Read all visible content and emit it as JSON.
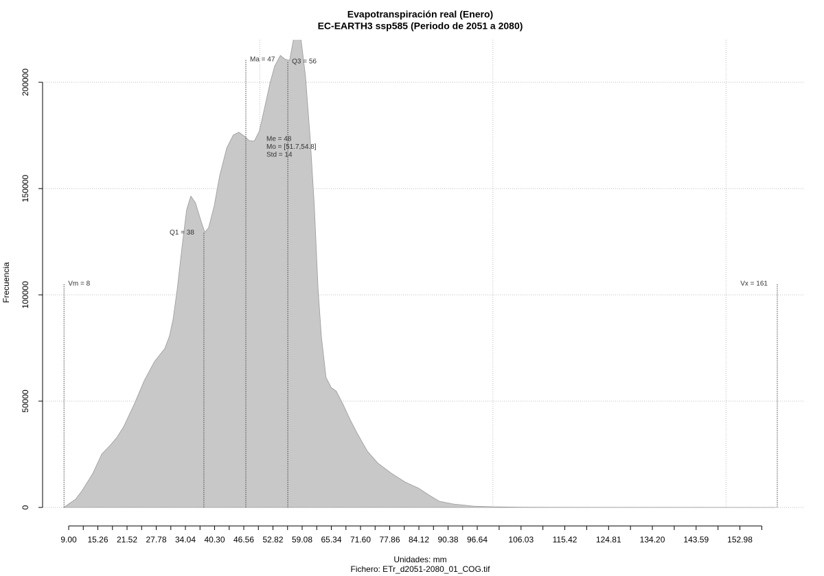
{
  "chart_data": {
    "type": "area",
    "title": "Evapotranspiración real (Enero)",
    "subtitle": "EC-EARTH3 ssp585 (Periodo de 2051 a 2080)",
    "y_label": "Frecuencia",
    "x_label": "Unidades: mm",
    "file_label": "Fichero: ETr_d2051-2080_01_COG.tif",
    "color": "#c8c8c8",
    "x": [
      8,
      9,
      10.5,
      11.9,
      14.2,
      16.1,
      17.8,
      19.3,
      20.8,
      23,
      25.2,
      27.4,
      29.6,
      30.6,
      31.4,
      32.3,
      33.3,
      34.3,
      35.2,
      36.2,
      37.3,
      38.2,
      39,
      40.2,
      41.4,
      42.9,
      44.3,
      45.5,
      46.7,
      47.7,
      48.8,
      49.9,
      50.9,
      52.2,
      53.2,
      54.4,
      55.4,
      56.4,
      57.6,
      58.3,
      59.8,
      60.8,
      61.7,
      62.5,
      63.2,
      64.2,
      65.3,
      66.4,
      67.9,
      69.4,
      70.9,
      73.1,
      75.3,
      78.2,
      81.2,
      84.1,
      86.3,
      88.5,
      91.5,
      95.9,
      100.3,
      106.2,
      112,
      160.7
    ],
    "values": [
      0,
      1600,
      3900,
      8000,
      16100,
      25100,
      29000,
      32800,
      38000,
      48300,
      59600,
      68600,
      74700,
      80500,
      88600,
      103000,
      122400,
      140100,
      146500,
      143300,
      135300,
      129500,
      131500,
      141700,
      156200,
      169100,
      175200,
      176500,
      174600,
      172600,
      172300,
      177100,
      186800,
      199700,
      207700,
      212600,
      210900,
      210300,
      225000,
      230000,
      202900,
      173900,
      141700,
      103000,
      80500,
      61200,
      56400,
      54700,
      48300,
      41200,
      34800,
      26400,
      20900,
      16100,
      11900,
      9000,
      5800,
      2900,
      1600,
      600,
      300,
      100,
      50,
      0
    ],
    "xlim": [
      3.4,
      166.6
    ],
    "ylim": [
      0,
      220000
    ],
    "yticks": [
      0,
      50000,
      100000,
      150000,
      200000
    ],
    "xticks": [
      {
        "value": 9,
        "label": "9.00"
      },
      {
        "value": 15.26,
        "label": "15.26"
      },
      {
        "value": 21.52,
        "label": "21.52"
      },
      {
        "value": 27.78,
        "label": "27.78"
      },
      {
        "value": 34.04,
        "label": "34.04"
      },
      {
        "value": 40.3,
        "label": "40.30"
      },
      {
        "value": 46.56,
        "label": "46.56"
      },
      {
        "value": 52.82,
        "label": "52.82"
      },
      {
        "value": 59.08,
        "label": "59.08"
      },
      {
        "value": 65.34,
        "label": "65.34"
      },
      {
        "value": 71.6,
        "label": "71.60"
      },
      {
        "value": 77.86,
        "label": "77.86"
      },
      {
        "value": 84.12,
        "label": "84.12"
      },
      {
        "value": 90.38,
        "label": "90.38"
      },
      {
        "value": 96.64,
        "label": "96.64"
      },
      {
        "value": 106.03,
        "label": "106.03"
      },
      {
        "value": 115.42,
        "label": "115.42"
      },
      {
        "value": 124.81,
        "label": "124.81"
      },
      {
        "value": 134.2,
        "label": "134.20"
      },
      {
        "value": 143.59,
        "label": "143.59"
      },
      {
        "value": 152.98,
        "label": "152.98"
      }
    ],
    "xminorticks": [
      12.13,
      18.39,
      24.65,
      30.91,
      37.17,
      43.43,
      49.69,
      55.95,
      62.21,
      68.47,
      74.73,
      80.99,
      87.25,
      93.51,
      101.335,
      110.725,
      120.115,
      129.505,
      138.895,
      148.285,
      157.675
    ],
    "xgrid": [
      50,
      100,
      150
    ],
    "grid": true,
    "markers": [
      {
        "label": "Vm = 8",
        "x": 8,
        "height": 105500
      },
      {
        "label": "Q1 = 38",
        "x": 38,
        "height": 129500
      },
      {
        "label": "Ma = 47",
        "x": 47,
        "height": 211000
      },
      {
        "label": "Q3 = 56",
        "x": 56,
        "height": 210000
      },
      {
        "label": "Vx = 161",
        "x": 161,
        "height": 105500
      }
    ],
    "stats": [
      "Me = 48",
      "Mo = [51.7,54.8]",
      "Std = 14"
    ]
  }
}
